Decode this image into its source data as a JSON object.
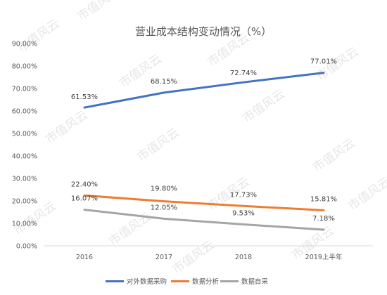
{
  "watermark": "市值风云",
  "chart_data": {
    "type": "line",
    "title": "营业成本结构变动情况（%）",
    "categories": [
      "2016",
      "2017",
      "2018",
      "2019上半年"
    ],
    "ylim": [
      0,
      90
    ],
    "yticks": [
      "0.00%",
      "10.00%",
      "20.00%",
      "30.00%",
      "40.00%",
      "50.00%",
      "60.00%",
      "70.00%",
      "80.00%",
      "90.00%"
    ],
    "grid": false,
    "legend": "bottom",
    "series": [
      {
        "name": "对外数据采购",
        "color": "#4472C4",
        "values": [
          61.53,
          68.15,
          72.74,
          77.01
        ],
        "labels": [
          "61.53%",
          "68.15%",
          "72.74%",
          "77.01%"
        ]
      },
      {
        "name": "数据分析",
        "color": "#ED7D31",
        "values": [
          22.4,
          19.8,
          17.73,
          15.81
        ],
        "labels": [
          "22.40%",
          "19.80%",
          "17.73%",
          "15.81%"
        ]
      },
      {
        "name": "数据自采",
        "color": "#A5A5A5",
        "values": [
          16.07,
          12.05,
          9.53,
          7.18
        ],
        "labels": [
          "16.07%",
          "12.05%",
          "9.53%",
          "7.18%"
        ]
      }
    ]
  }
}
